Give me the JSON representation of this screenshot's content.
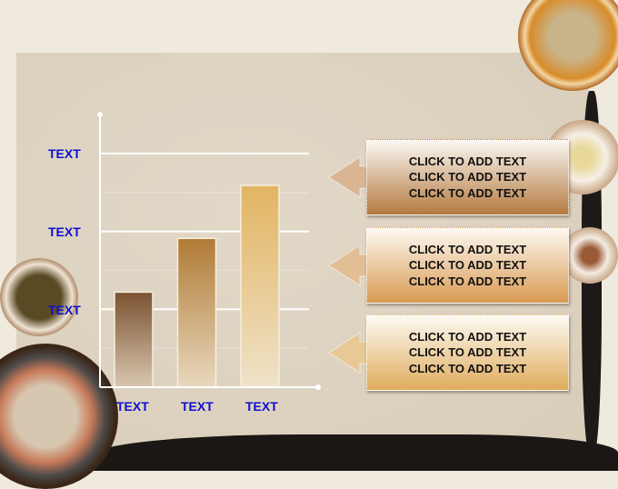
{
  "chart_data": {
    "type": "bar",
    "categories": [
      "TEXT",
      "TEXT",
      "TEXT"
    ],
    "values": [
      1.22,
      1.91,
      2.59
    ],
    "ytick_labels": [
      "TEXT",
      "TEXT",
      "TEXT"
    ],
    "ytick_values": [
      1,
      2,
      3
    ],
    "ylim": [
      0,
      3.5
    ],
    "grid": true,
    "bar_colors": [
      [
        "#7a5230",
        "#d9c6b0"
      ],
      [
        "#b07a35",
        "#e8d8bd"
      ],
      [
        "#e2b462",
        "#efe2c8"
      ]
    ]
  },
  "callouts": [
    {
      "lines": [
        "CLICK TO ADD TEXT",
        "CLICK TO ADD TEXT",
        "CLICK TO ADD TEXT"
      ],
      "gradient": [
        "#fbf8f5",
        "#b47a3e"
      ]
    },
    {
      "lines": [
        "CLICK TO ADD TEXT",
        "CLICK TO ADD TEXT",
        "CLICK TO ADD TEXT"
      ],
      "gradient": [
        "#fdf9f3",
        "#d99a52"
      ]
    },
    {
      "lines": [
        "CLICK TO ADD TEXT",
        "CLICK TO ADD TEXT",
        "CLICK TO ADD TEXT"
      ],
      "gradient": [
        "#fdfaf4",
        "#dfac5c"
      ]
    }
  ]
}
